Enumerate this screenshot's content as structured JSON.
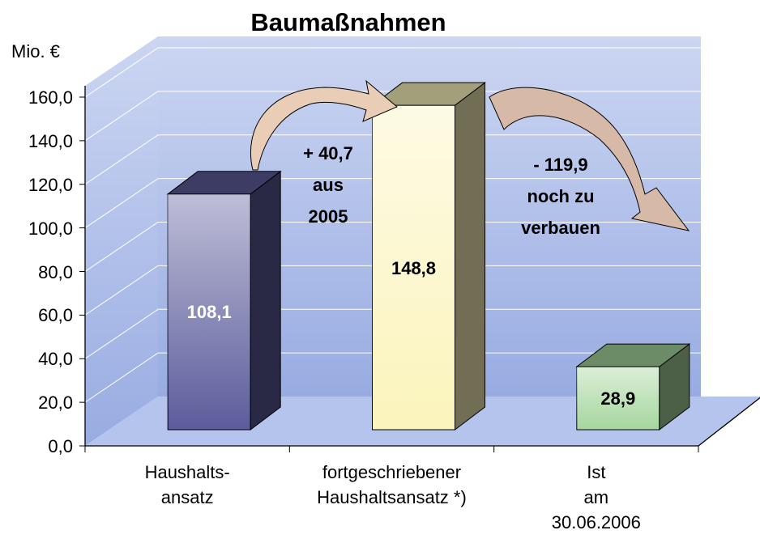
{
  "chart_data": {
    "type": "bar3d",
    "title": "Baumaßnahmen",
    "y_label": "Mio. €",
    "categories": [
      "Haushalts-\nansatz",
      "fortgeschriebener\nHaushaltsansatz *)",
      "Ist\nam\n30.06.2006"
    ],
    "values": [
      108.1,
      148.8,
      28.9
    ],
    "value_labels": [
      "108,1",
      "148,8",
      "28,9"
    ],
    "colors": [
      "#5c5c9c",
      "#fbf4bc",
      "#a6d69e"
    ],
    "ylim": [
      0,
      160
    ],
    "yticks": [
      {
        "value": 0,
        "label": "0,0"
      },
      {
        "value": 20,
        "label": "20,0"
      },
      {
        "value": 40,
        "label": "40,0"
      },
      {
        "value": 60,
        "label": "60,0"
      },
      {
        "value": 80,
        "label": "80,0"
      },
      {
        "value": 100,
        "label": "100,0"
      },
      {
        "value": 120,
        "label": "120,0"
      },
      {
        "value": 140,
        "label": "140,0"
      },
      {
        "value": 160,
        "label": "160,0"
      }
    ],
    "grid": true,
    "annotations": [
      "+ 40,7\naus\n2005",
      "- 119,9\nnoch zu\nverbauen"
    ]
  }
}
